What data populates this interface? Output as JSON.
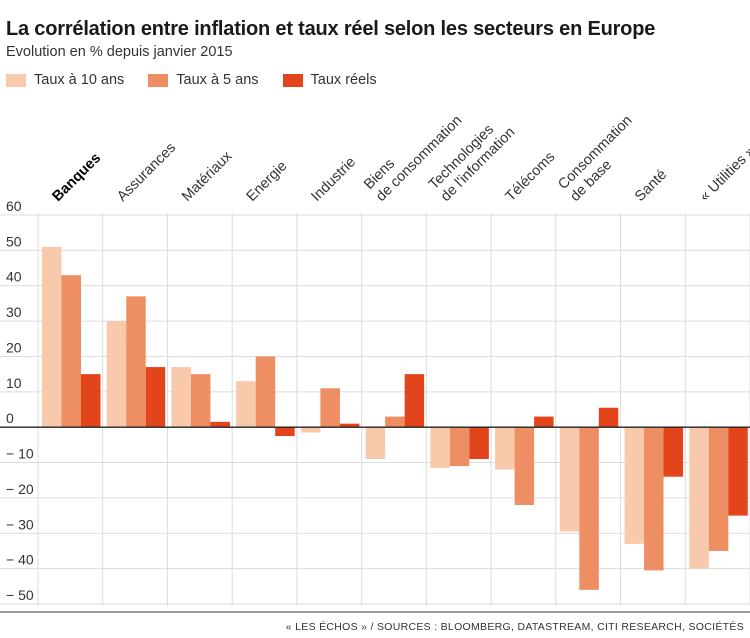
{
  "header": {
    "title": "La corrélation entre inflation et taux réel selon les secteurs en Europe",
    "subtitle": "Evolution en % depuis janvier 2015"
  },
  "legend": [
    {
      "label": "Taux à 10 ans",
      "color": "#f9c9ab"
    },
    {
      "label": "Taux à 5 ans",
      "color": "#ee8f63"
    },
    {
      "label": "Taux réels",
      "color": "#e2451b"
    }
  ],
  "source": "« LES ÉCHOS » / SOURCES : BLOOMBERG, DATASTREAM, CITI RESEARCH, SOCIÉTÉS",
  "chart_data": {
    "type": "bar",
    "title": "La corrélation entre inflation et taux réel selon les secteurs en Europe",
    "subtitle": "Evolution en % depuis janvier 2015",
    "categories": [
      [
        "Banques"
      ],
      [
        "Assurances"
      ],
      [
        "Matériaux"
      ],
      [
        "Energie"
      ],
      [
        "Industrie"
      ],
      [
        "Biens",
        "de consommation"
      ],
      [
        "Technologies",
        "de l'information"
      ],
      [
        "Télécoms"
      ],
      [
        "Consommation",
        "de base"
      ],
      [
        "Santé"
      ],
      [
        "« Utilities »"
      ]
    ],
    "highlight_category": 0,
    "series": [
      {
        "name": "Taux à 10 ans",
        "color": "#f9c9ab",
        "values": [
          51,
          30,
          17,
          13,
          -1.5,
          -9,
          -11.5,
          -12,
          -29.5,
          -33,
          -40
        ]
      },
      {
        "name": "Taux à 5 ans",
        "color": "#ee8f63",
        "values": [
          43,
          37,
          15,
          20,
          11,
          3,
          -11,
          -22,
          -46,
          -40.5,
          -35
        ]
      },
      {
        "name": "Taux réels",
        "color": "#e2451b",
        "values": [
          15,
          17,
          1.5,
          -2.5,
          1,
          15,
          -9,
          3,
          5.5,
          -14,
          -25
        ]
      }
    ],
    "yticks": [
      60,
      50,
      40,
      30,
      20,
      10,
      0,
      -10,
      -20,
      -30,
      -40,
      -50
    ],
    "ytick_labels": [
      "60",
      "50",
      "40",
      "30",
      "20",
      "10",
      "0",
      "− 10",
      "− 20",
      "− 30",
      "− 40",
      "− 50"
    ],
    "ylim": [
      -50,
      60
    ],
    "grid": true,
    "legend_position": "top-left"
  }
}
